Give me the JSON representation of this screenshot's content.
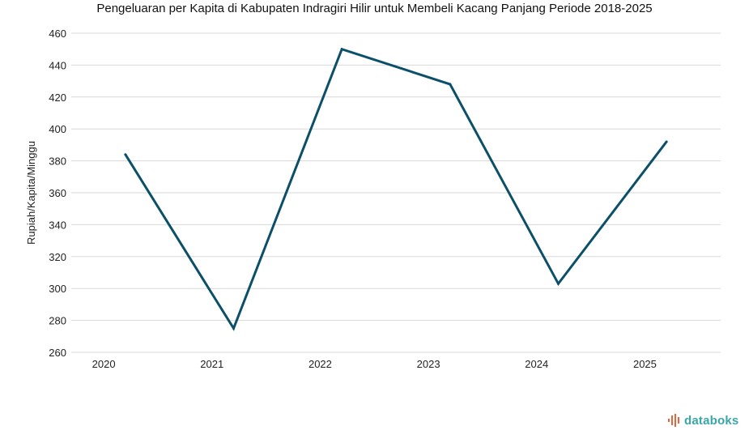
{
  "chart_data": {
    "type": "line",
    "title": "Pengeluaran per Kapita di Kabupaten Indragiri Hilir untuk Membeli Kacang Panjang Periode 2018-2025",
    "xlabel": "",
    "ylabel": "Rupiah/Kapita/Minggu",
    "categories": [
      "2020",
      "2021",
      "2022",
      "2023",
      "2024",
      "2025"
    ],
    "series": [
      {
        "values": [
          384,
          275,
          450,
          428,
          303,
          392
        ]
      }
    ],
    "ylim": [
      260,
      460
    ],
    "yticks": [
      "460",
      "440",
      "420",
      "400",
      "380",
      "360",
      "340",
      "320",
      "300",
      "280",
      "260"
    ],
    "grid": true,
    "legend": "none",
    "line_color": "#0b5068"
  },
  "brand": {
    "name": "databoks",
    "icon": "bar-pulse-icon",
    "color": "#3aa6a6",
    "icon_color": "#e8643a"
  }
}
